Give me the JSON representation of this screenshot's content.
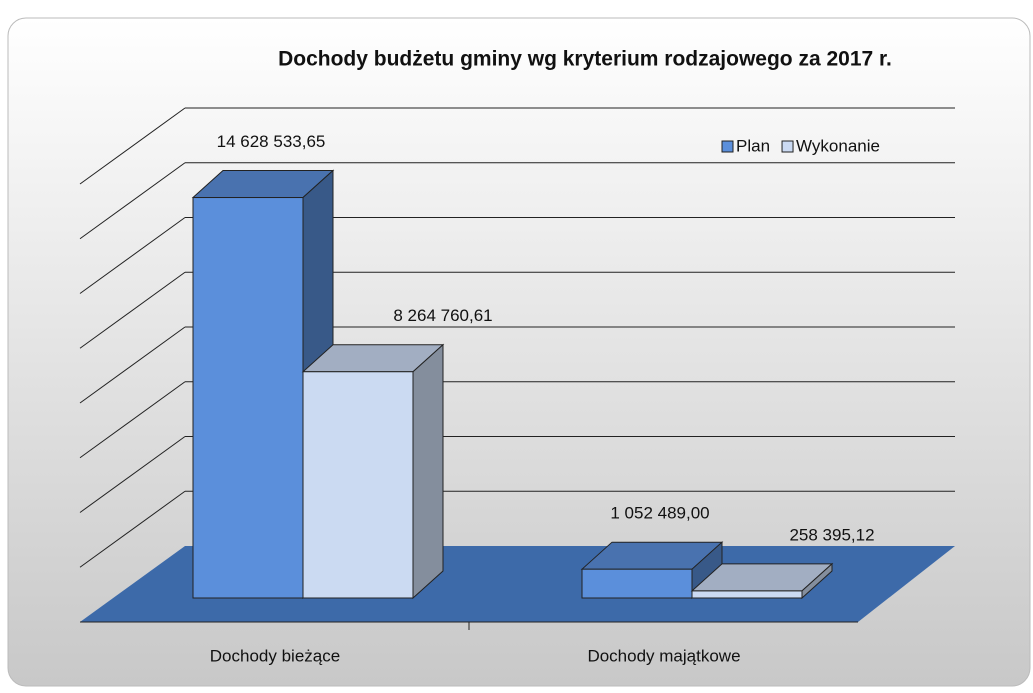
{
  "chart_data": {
    "type": "bar3d",
    "title": "Dochody budżetu gminy wg kryterium rodzajowego za 2017 r.",
    "categories": [
      "Dochody bieżące",
      "Dochody majątkowe"
    ],
    "series": [
      {
        "name": "Plan",
        "color": "#5b8fdb",
        "values": [
          14628533.65,
          1052489.0
        ],
        "value_labels": [
          "14 628 533,65",
          "1 052 489,00"
        ]
      },
      {
        "name": "Wykonanie",
        "color": "#cbdaf2",
        "values": [
          8264760.61,
          258395.12
        ],
        "value_labels": [
          "8 264 760,61",
          "258 395,12"
        ]
      }
    ],
    "ylim": [
      0,
      16000000
    ],
    "yticks": [
      0,
      2000000,
      4000000,
      6000000,
      8000000,
      10000000,
      12000000,
      14000000,
      16000000
    ],
    "grid": true,
    "legend": "top-right"
  }
}
